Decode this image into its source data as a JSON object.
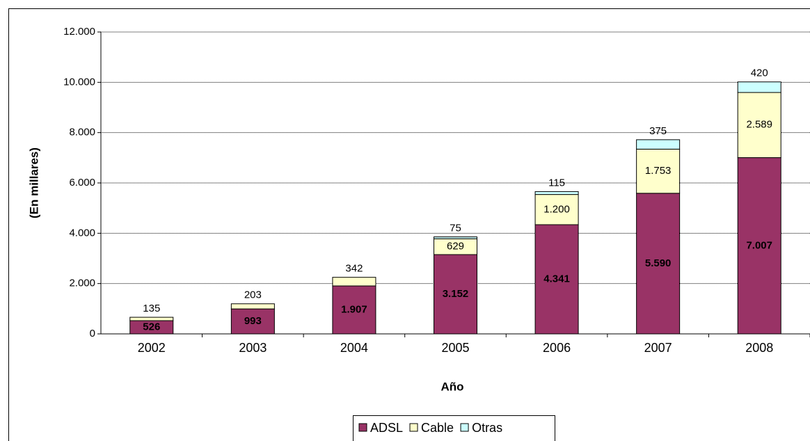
{
  "chart_data": {
    "type": "stacked_bar",
    "x_label": "Año",
    "y_label": "(En millares)",
    "categories": [
      "2002",
      "2003",
      "2004",
      "2005",
      "2006",
      "2007",
      "2008"
    ],
    "series": [
      {
        "name": "ADSL",
        "color": "#993366",
        "values": [
          526,
          993,
          1907,
          3152,
          4341,
          5590,
          7007
        ],
        "value_labels": [
          "526",
          "993",
          "1.907",
          "3.152",
          "4.341",
          "5.590",
          "7.007"
        ]
      },
      {
        "name": "Cable",
        "color": "#ffffcc",
        "values": [
          135,
          203,
          342,
          629,
          1200,
          1753,
          2589
        ],
        "value_labels": [
          "135",
          "203",
          "342",
          "629",
          "1.200",
          "1.753",
          "2.589"
        ]
      },
      {
        "name": "Otras",
        "color": "#ccffff",
        "values": [
          null,
          null,
          null,
          75,
          115,
          375,
          420
        ],
        "value_labels": [
          null,
          null,
          null,
          "75",
          "115",
          "375",
          "420"
        ]
      }
    ],
    "ylim": [
      0,
      12000
    ],
    "yticks": [
      0,
      {
        "value": 2000,
        "label": "2.000"
      },
      {
        "value": 4000,
        "label": "4.000"
      },
      {
        "value": 6000,
        "label": "6.000"
      },
      {
        "value": 8000,
        "label": "8.000"
      },
      {
        "value": 10000,
        "label": "10.000"
      },
      {
        "value": 12000,
        "label": "12.000"
      }
    ],
    "grid": true,
    "legend": "bottom"
  }
}
